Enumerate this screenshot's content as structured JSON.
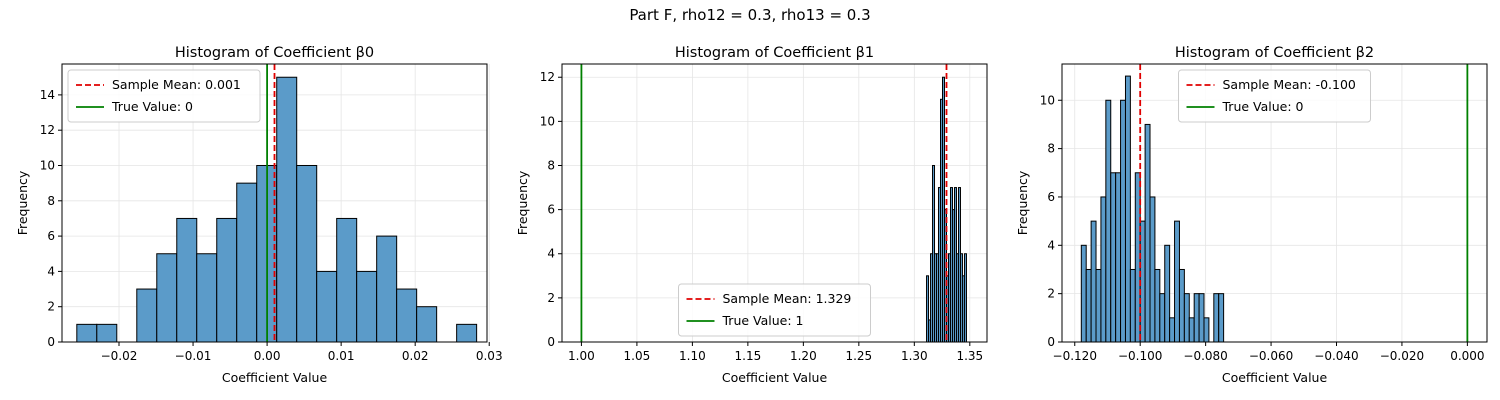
{
  "suptitle": "Part F, rho12 = 0.3, rho13 = 0.3",
  "colors": {
    "bar": "#5b9bc9",
    "bar_edge": "#000000",
    "mean_line": "#e00000",
    "true_line": "#008000",
    "grid": "#e5e5e5"
  },
  "chart_data": [
    {
      "type": "bar",
      "title": "Histogram of Coefficient β0",
      "xlabel": "Coefficient Value",
      "ylabel": "Frequency",
      "xlim": [
        -0.0277,
        0.0297
      ],
      "ylim": [
        0,
        15.75
      ],
      "xticks": [
        -0.02,
        -0.01,
        0.0,
        0.01,
        0.02,
        0.03
      ],
      "xtick_labels": [
        "−0.02",
        "−0.01",
        "0.00",
        "0.01",
        "0.02",
        "0.03"
      ],
      "yticks": [
        0,
        2,
        4,
        6,
        8,
        10,
        12,
        14
      ],
      "ytick_labels": [
        "0",
        "2",
        "4",
        "6",
        "8",
        "10",
        "12",
        "14"
      ],
      "bin_edges": [
        -0.0257,
        -0.023,
        -0.0203,
        -0.0176,
        -0.0149,
        -0.0122,
        -0.0095,
        -0.0068,
        -0.0041,
        -0.0014,
        0.0013,
        0.004,
        0.0067,
        0.0094,
        0.0121,
        0.0148,
        0.0175,
        0.0202,
        0.0229,
        0.0256,
        0.0283
      ],
      "counts": [
        1,
        1,
        0,
        3,
        5,
        7,
        5,
        7,
        9,
        10,
        15,
        10,
        4,
        7,
        4,
        6,
        3,
        2,
        0,
        1
      ],
      "grid": true,
      "legend_position": "upper left",
      "mean_line": {
        "value": 0.001,
        "label": "Sample Mean: 0.001"
      },
      "true_line": {
        "value": 0,
        "label": "True Value: 0"
      }
    },
    {
      "type": "bar",
      "title": "Histogram of Coefficient β1",
      "xlabel": "Coefficient Value",
      "ylabel": "Frequency",
      "xlim": [
        0.9825,
        1.3655
      ],
      "ylim": [
        0,
        12.6
      ],
      "xticks": [
        1.0,
        1.05,
        1.1,
        1.15,
        1.2,
        1.25,
        1.3,
        1.35
      ],
      "xtick_labels": [
        "1.00",
        "1.05",
        "1.10",
        "1.15",
        "1.20",
        "1.25",
        "1.30",
        "1.35"
      ],
      "yticks": [
        0,
        2,
        4,
        6,
        8,
        10,
        12
      ],
      "ytick_labels": [
        "0",
        "2",
        "4",
        "6",
        "8",
        "10",
        "12"
      ],
      "bin_edges": [
        1.311,
        1.3128,
        1.3146,
        1.3164,
        1.3182,
        1.32,
        1.3218,
        1.3236,
        1.3254,
        1.3272,
        1.329,
        1.3308,
        1.3326,
        1.3344,
        1.3362,
        1.338,
        1.3398,
        1.3416,
        1.3434,
        1.3452,
        1.347
      ],
      "counts": [
        3,
        1,
        4,
        8,
        4,
        4,
        7,
        11,
        12,
        6,
        3,
        4,
        7,
        6,
        7,
        4,
        7,
        4,
        3,
        4
      ],
      "grid": true,
      "legend_position": "lower center",
      "mean_line": {
        "value": 1.329,
        "label": "Sample Mean: 1.329"
      },
      "true_line": {
        "value": 1,
        "label": "True Value: 1"
      }
    },
    {
      "type": "bar",
      "title": "Histogram of Coefficient β2",
      "xlabel": "Coefficient Value",
      "ylabel": "Frequency",
      "xlim": [
        -0.1239,
        0.006
      ],
      "ylim": [
        0,
        11.5
      ],
      "xticks": [
        -0.12,
        -0.1,
        -0.08,
        -0.06,
        -0.04,
        -0.02,
        0.0
      ],
      "xtick_labels": [
        "−0.120",
        "−0.100",
        "−0.080",
        "−0.060",
        "−0.040",
        "−0.020",
        "0.000"
      ],
      "yticks": [
        0,
        2,
        4,
        6,
        8,
        10
      ],
      "ytick_labels": [
        "0",
        "2",
        "4",
        "6",
        "8",
        "10"
      ],
      "bin_edges": [
        -0.118,
        -0.1165,
        -0.115,
        -0.1135,
        -0.112,
        -0.1105,
        -0.109,
        -0.1075,
        -0.106,
        -0.1045,
        -0.103,
        -0.1015,
        -0.1,
        -0.0985,
        -0.097,
        -0.0955,
        -0.094,
        -0.0925,
        -0.091,
        -0.0895,
        -0.088,
        -0.0865,
        -0.085,
        -0.0835,
        -0.082,
        -0.0805,
        -0.079,
        -0.0775,
        -0.076,
        -0.0745
      ],
      "counts": [
        4,
        3,
        5,
        3,
        6,
        10,
        7,
        7,
        10,
        11,
        3,
        7,
        5,
        9,
        6,
        3,
        2,
        4,
        1,
        5,
        3,
        2,
        1,
        2,
        2,
        1,
        0,
        2,
        2
      ],
      "grid": true,
      "legend_position": "upper center",
      "mean_line": {
        "value": -0.1,
        "label": "Sample Mean: -0.100"
      },
      "true_line": {
        "value": 0,
        "label": "True Value: 0"
      }
    }
  ]
}
